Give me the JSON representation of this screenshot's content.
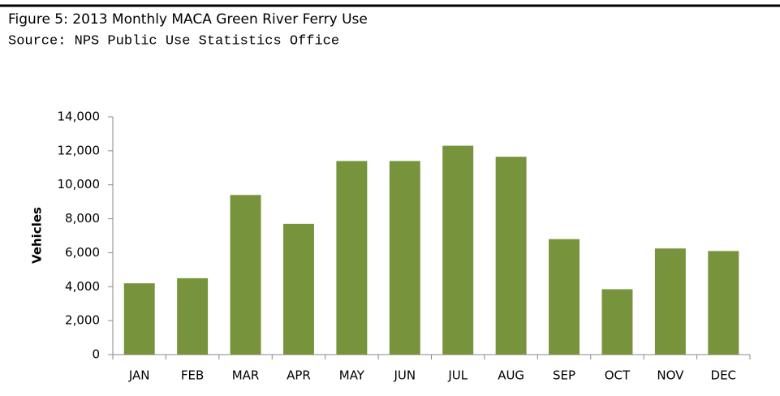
{
  "chart_data": {
    "type": "bar",
    "title": "Figure 5: 2013 Monthly MACA Green River Ferry Use",
    "subtitle": "Source: NPS Public Use Statistics Office",
    "y_label": "Vehicles",
    "categories": [
      "JAN",
      "FEB",
      "MAR",
      "APR",
      "MAY",
      "JUN",
      "JUL",
      "AUG",
      "SEP",
      "OCT",
      "NOV",
      "DEC"
    ],
    "values": [
      4200,
      4500,
      9400,
      7700,
      11400,
      11400,
      12300,
      11650,
      6800,
      3850,
      6250,
      6100
    ],
    "color": "#77933c",
    "ylim": [
      0,
      14000
    ],
    "yticks": [
      0,
      {
        "value": 2000,
        "label": "2,000"
      },
      {
        "value": 4000,
        "label": "4,000"
      },
      {
        "value": 6000,
        "label": "6,000"
      },
      {
        "value": 8000,
        "label": "8,000"
      },
      {
        "value": 10000,
        "label": "10,000"
      },
      {
        "value": 12000,
        "label": "12,000"
      },
      {
        "value": 14000,
        "label": "14,000"
      }
    ],
    "grid": false
  }
}
